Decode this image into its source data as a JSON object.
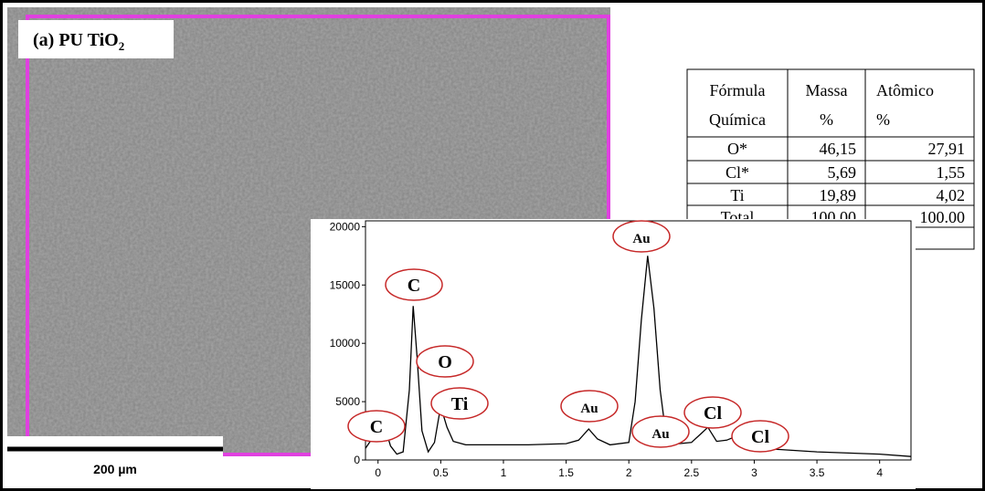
{
  "image": {
    "title": {
      "text": "(a) PU TiO",
      "subscript": "2"
    },
    "scale_bar": "200 µm"
  },
  "table": {
    "header": [
      [
        "Fórmula",
        "Química"
      ],
      [
        "Massa",
        "%"
      ],
      [
        "Atômico",
        "%"
      ]
    ],
    "rows": [
      [
        "O*",
        "46,15",
        "27,91"
      ],
      [
        "Cl*",
        "5,69",
        "1,55"
      ],
      [
        "Ti",
        "19,89",
        "4,02"
      ],
      [
        "Total",
        "100.00",
        "100.00"
      ]
    ]
  },
  "chart_data": {
    "type": "line",
    "color": "#000000",
    "x": [
      -0.1,
      -0.05,
      0.0,
      0.05,
      0.1,
      0.15,
      0.2,
      0.25,
      0.28,
      0.31,
      0.35,
      0.4,
      0.45,
      0.5,
      0.55,
      0.6,
      0.7,
      0.9,
      1.2,
      1.5,
      1.6,
      1.68,
      1.75,
      1.85,
      2.0,
      2.05,
      2.1,
      2.15,
      2.2,
      2.25,
      2.3,
      2.4,
      2.5,
      2.58,
      2.63,
      2.7,
      2.78,
      2.85,
      2.95,
      3.2,
      3.5,
      4.0,
      4.25
    ],
    "values": [
      1000,
      1800,
      2500,
      3000,
      1200,
      500,
      700,
      6000,
      13200,
      9000,
      2500,
      700,
      1500,
      4600,
      2800,
      1600,
      1300,
      1300,
      1300,
      1400,
      1700,
      2650,
      1800,
      1300,
      1500,
      5000,
      12000,
      17500,
      13000,
      6000,
      1800,
      1400,
      1500,
      2300,
      2800,
      1600,
      1700,
      2000,
      1000,
      900,
      700,
      500,
      300
    ],
    "xlim": [
      -0.1,
      4.25
    ],
    "ylim": [
      0,
      20500
    ],
    "xticks": [
      0,
      0.5,
      1,
      1.5,
      2,
      2.5,
      3,
      3.5,
      4
    ],
    "yticks": [
      0,
      5000,
      10000,
      15000,
      20000
    ],
    "annotations": [
      "C",
      "C",
      "O",
      "Ti",
      "Au",
      "Au",
      "Au",
      "Cl",
      "Cl"
    ]
  }
}
